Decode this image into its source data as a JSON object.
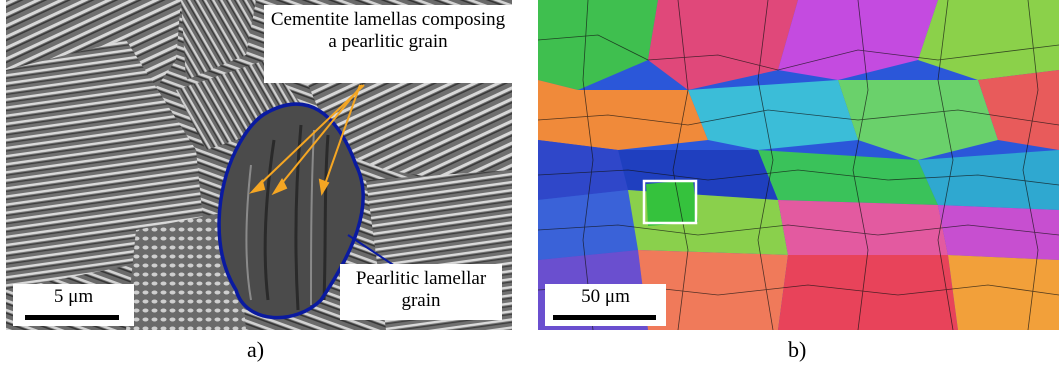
{
  "panels": {
    "a": {
      "callout_cementite": "Cementite lamellas composing a pearlitic grain",
      "callout_grain": "Pearlitic lamellar grain",
      "scale_label": "5 μm",
      "label": "a)",
      "colors": {
        "grain_outline": "#0a1aa0",
        "arrow": "#f5a623",
        "background": "#7c7c7c"
      }
    },
    "b": {
      "scale_label": "50 μm",
      "label": "b)",
      "colors": {
        "highlight_box": "#ffffff"
      }
    }
  }
}
